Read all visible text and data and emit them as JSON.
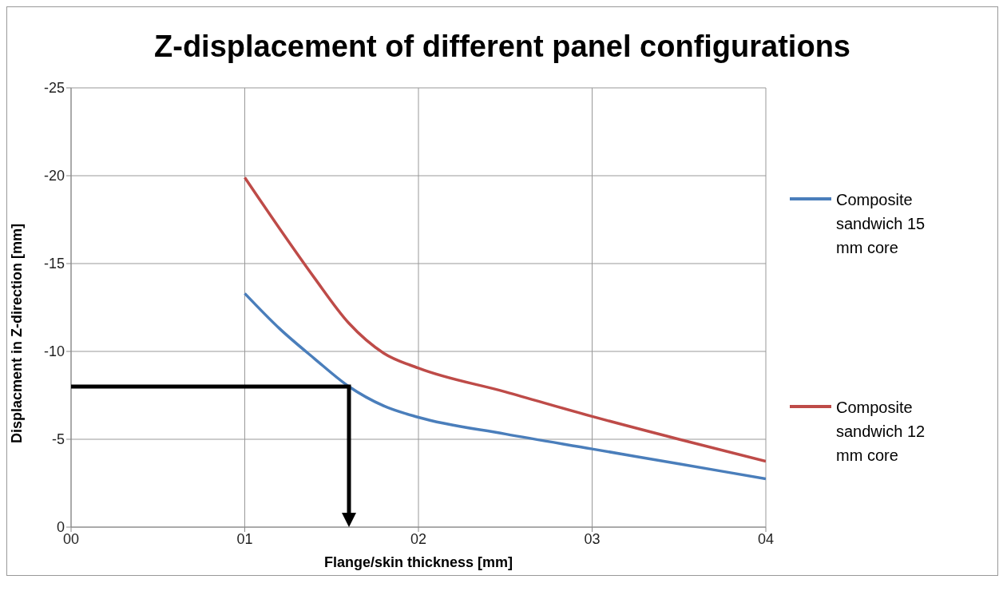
{
  "chart_data": {
    "type": "line",
    "title": "Z-displacement of different panel configurations",
    "xlabel": "Flange/skin thickness [mm]",
    "ylabel": "Displacment in Z-direction  [mm]",
    "xlim": [
      0,
      4
    ],
    "xticks": [
      {
        "value": 0,
        "label": "00"
      },
      {
        "value": 1,
        "label": "01"
      },
      {
        "value": 2,
        "label": "02"
      },
      {
        "value": 3,
        "label": "03"
      },
      {
        "value": 4,
        "label": "04"
      }
    ],
    "ylim": [
      0,
      -25
    ],
    "yticks": [
      0,
      -5,
      -10,
      -15,
      -20,
      -25
    ],
    "grid": true,
    "legend": "right",
    "marker": "none",
    "line_style": "solid",
    "series": [
      {
        "name": "Composite sandwich 15 mm core",
        "color": "#4a7ebb",
        "x": [
          1,
          1.2,
          1.4,
          1.6,
          1.8,
          2,
          2.5,
          3,
          3.5,
          4
        ],
        "values": [
          -13.3,
          -11.3,
          -9.6,
          -8.0,
          -6.9,
          -6.25,
          -5.3,
          -4.45,
          -3.6,
          -2.75
        ]
      },
      {
        "name": "Composite sandwich 12 mm core",
        "color": "#be4b48",
        "x": [
          1,
          1.2,
          1.4,
          1.6,
          1.8,
          2,
          2.5,
          3,
          3.5,
          4
        ],
        "values": [
          -19.9,
          -17.0,
          -14.2,
          -11.6,
          -9.9,
          -9.05,
          -7.7,
          -6.3,
          -5.0,
          -3.75
        ]
      }
    ]
  }
}
